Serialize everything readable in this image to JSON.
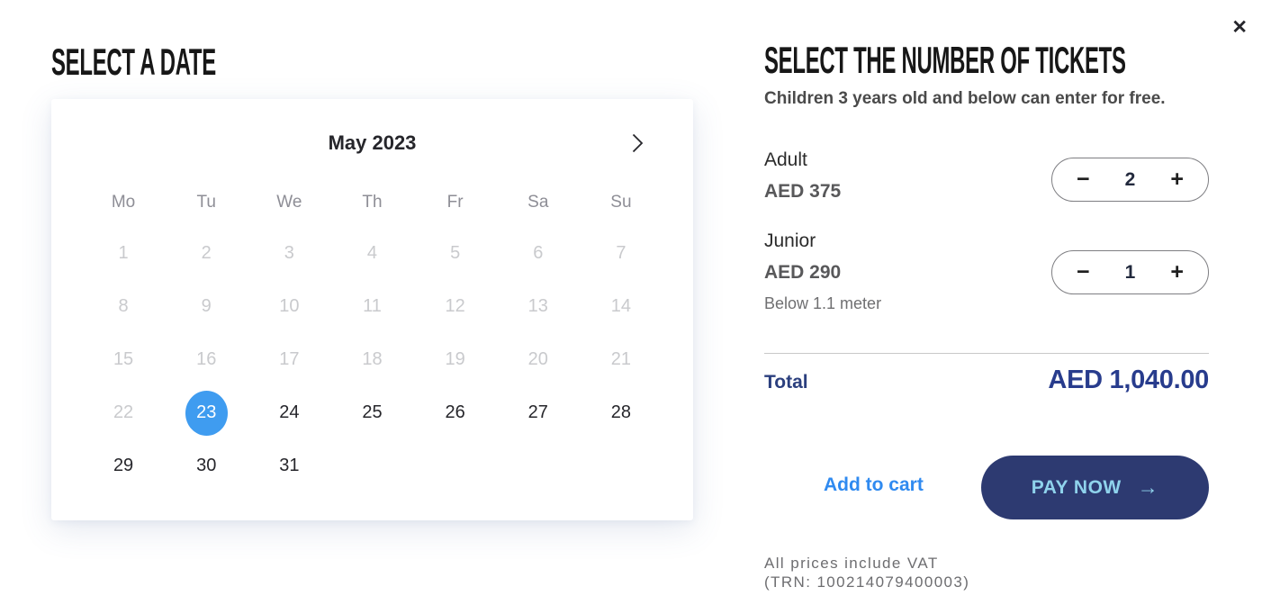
{
  "dialog": {
    "close_icon": "✕"
  },
  "date_section": {
    "title": "SELECT A DATE",
    "calendar": {
      "month_label": "May 2023",
      "next_icon": "›",
      "weekdays": [
        "Mo",
        "Tu",
        "We",
        "Th",
        "Fr",
        "Sa",
        "Su"
      ],
      "selected_day": 23,
      "weeks": [
        [
          {
            "d": 1,
            "state": "disabled"
          },
          {
            "d": 2,
            "state": "disabled"
          },
          {
            "d": 3,
            "state": "disabled"
          },
          {
            "d": 4,
            "state": "disabled"
          },
          {
            "d": 5,
            "state": "disabled"
          },
          {
            "d": 6,
            "state": "disabled"
          },
          {
            "d": 7,
            "state": "disabled"
          }
        ],
        [
          {
            "d": 8,
            "state": "disabled"
          },
          {
            "d": 9,
            "state": "disabled"
          },
          {
            "d": 10,
            "state": "disabled"
          },
          {
            "d": 11,
            "state": "disabled"
          },
          {
            "d": 12,
            "state": "disabled"
          },
          {
            "d": 13,
            "state": "disabled"
          },
          {
            "d": 14,
            "state": "disabled"
          }
        ],
        [
          {
            "d": 15,
            "state": "disabled"
          },
          {
            "d": 16,
            "state": "disabled"
          },
          {
            "d": 17,
            "state": "disabled"
          },
          {
            "d": 18,
            "state": "disabled"
          },
          {
            "d": 19,
            "state": "disabled"
          },
          {
            "d": 20,
            "state": "disabled"
          },
          {
            "d": 21,
            "state": "disabled"
          }
        ],
        [
          {
            "d": 22,
            "state": "disabled"
          },
          {
            "d": 23,
            "state": "selected"
          },
          {
            "d": 24,
            "state": "active"
          },
          {
            "d": 25,
            "state": "active"
          },
          {
            "d": 26,
            "state": "active"
          },
          {
            "d": 27,
            "state": "active"
          },
          {
            "d": 28,
            "state": "active"
          }
        ],
        [
          {
            "d": 29,
            "state": "active"
          },
          {
            "d": 30,
            "state": "active"
          },
          {
            "d": 31,
            "state": "active"
          },
          null,
          null,
          null,
          null
        ]
      ]
    }
  },
  "tickets_section": {
    "title": "SELECT THE NUMBER OF TICKETS",
    "subtitle": "Children 3 years old and below can enter for free.",
    "tickets": [
      {
        "name": "Adult",
        "price": "AED 375",
        "count": "2"
      },
      {
        "name": "Junior",
        "price": "AED 290",
        "note": "Below 1.1 meter",
        "count": "1"
      }
    ],
    "stepper": {
      "minus_icon": "−",
      "plus_icon": "+"
    },
    "total": {
      "label": "Total",
      "value": "AED 1,040.00"
    },
    "actions": {
      "add_to_cart": "Add to cart",
      "pay_now": "PAY NOW",
      "pay_now_arrow_icon": "→"
    },
    "footer": {
      "line1": "All prices include VAT",
      "line2": "(TRN: 100214079400003)"
    }
  },
  "colors": {
    "selected_day": "#3f9cf0",
    "pay_button_bg": "#2d3a71",
    "pay_button_text": "#8fd3ec",
    "link_blue": "#2f8af0",
    "total_navy": "#283c8d"
  }
}
